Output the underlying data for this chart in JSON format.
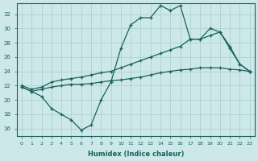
{
  "xlabel": "Humidex (Indice chaleur)",
  "bg_color": "#cce8e8",
  "grid_color": "#aacccc",
  "line_color": "#1a6060",
  "xlim": [
    -0.5,
    23.5
  ],
  "ylim": [
    15,
    33.5
  ],
  "xticks": [
    0,
    1,
    2,
    3,
    4,
    5,
    6,
    7,
    8,
    9,
    10,
    11,
    12,
    13,
    14,
    15,
    16,
    17,
    18,
    19,
    20,
    21,
    22,
    23
  ],
  "yticks": [
    16,
    18,
    20,
    22,
    24,
    26,
    28,
    30,
    32
  ],
  "line_spiky_x": [
    0,
    1,
    2,
    3,
    4,
    5,
    6,
    7,
    8,
    9,
    10,
    11,
    12,
    13,
    14,
    15,
    16,
    17,
    18,
    19,
    20,
    21,
    22,
    23
  ],
  "line_spiky_y": [
    21.8,
    21.2,
    20.5,
    18.8,
    18.0,
    17.2,
    15.8,
    16.5,
    20.0,
    22.5,
    27.2,
    30.5,
    31.5,
    31.5,
    33.2,
    32.5,
    33.2,
    28.5,
    28.5,
    30.0,
    29.5,
    27.2,
    25.0,
    24.0
  ],
  "line_upper_x": [
    0,
    1,
    2,
    3,
    4,
    5,
    6,
    7,
    8,
    9,
    10,
    11,
    12,
    13,
    14,
    15,
    16,
    17,
    18,
    19,
    20,
    21,
    22,
    23
  ],
  "line_upper_y": [
    22.0,
    21.5,
    21.8,
    22.5,
    22.8,
    23.0,
    23.2,
    23.5,
    23.8,
    24.0,
    24.5,
    25.0,
    25.5,
    26.0,
    26.5,
    27.0,
    27.5,
    28.5,
    28.5,
    29.0,
    29.5,
    27.5,
    25.0,
    24.0
  ],
  "line_lower_x": [
    0,
    1,
    2,
    3,
    4,
    5,
    6,
    7,
    8,
    9,
    10,
    11,
    12,
    13,
    14,
    15,
    16,
    17,
    18,
    19,
    20,
    21,
    22,
    23
  ],
  "line_lower_y": [
    21.8,
    21.2,
    21.5,
    21.8,
    22.0,
    22.2,
    22.2,
    22.3,
    22.5,
    22.7,
    22.8,
    23.0,
    23.2,
    23.5,
    23.8,
    24.0,
    24.2,
    24.3,
    24.5,
    24.5,
    24.5,
    24.3,
    24.2,
    24.0
  ]
}
